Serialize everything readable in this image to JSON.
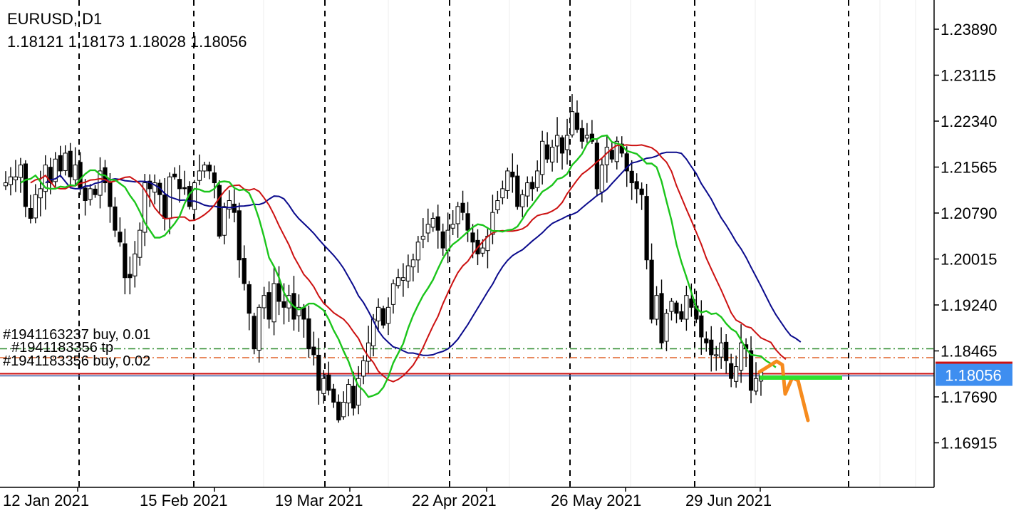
{
  "header": {
    "symbol": "EURUSD, D1",
    "ohlc": "1.18121 1.18173 1.18028 1.18056"
  },
  "chart_data": {
    "type": "candlestick",
    "symbol": "EURUSD",
    "timeframe": "D1",
    "ohlc_last": {
      "open": 1.18121,
      "high": 1.18173,
      "low": 1.18028,
      "close": 1.18056
    },
    "price_labels": [
      "1.23890",
      "1.23115",
      "1.22340",
      "1.21565",
      "1.20790",
      "1.20015",
      "1.19240",
      "1.18465",
      "1.17690",
      "1.16915"
    ],
    "price_ticks": [
      1.2389,
      1.23115,
      1.2234,
      1.21565,
      1.2079,
      1.20015,
      1.1924,
      1.18465,
      1.1769,
      1.16915
    ],
    "ylim": [
      1.1635,
      1.2445
    ],
    "current_price": "1.18056",
    "current_price_value": 1.18056,
    "date_labels": [
      "12 Jan 2021",
      "15 Feb 2021",
      "19 Mar 2021",
      "22 Apr 2021",
      "26 May 2021",
      "29 Jun 2021"
    ],
    "trade_lines": [
      {
        "label": "#1941163237 buy, 0.01",
        "price": 1.18465,
        "style": "dashdot",
        "color": "#2e8b2e"
      },
      {
        "label": "#1941183356 tp",
        "price": 1.18465,
        "style": "dashdot",
        "color": "#2e8b2e"
      },
      {
        "label": "#1941183356 buy, 0.02",
        "price": 1.1829,
        "style": "dashdot",
        "color": "#e0622a"
      }
    ],
    "closes": [
      1.213,
      1.214,
      1.214,
      1.216,
      1.209,
      1.207,
      1.211,
      1.212,
      1.216,
      1.213,
      1.217,
      1.215,
      1.218,
      1.214,
      1.216,
      1.212,
      1.21,
      1.212,
      1.211,
      1.215,
      1.213,
      1.209,
      1.205,
      1.203,
      1.197,
      1.197,
      1.201,
      1.205,
      1.213,
      1.212,
      1.213,
      1.211,
      1.207,
      1.214,
      1.214,
      1.212,
      1.212,
      1.209,
      1.213,
      1.215,
      1.216,
      1.215,
      1.213,
      1.204,
      1.209,
      1.21,
      1.208,
      1.2,
      1.196,
      1.191,
      1.185,
      1.192,
      1.194,
      1.19,
      1.196,
      1.193,
      1.192,
      1.194,
      1.19,
      1.192,
      1.19,
      1.185,
      1.184,
      1.178,
      1.18,
      1.178,
      1.176,
      1.173,
      1.176,
      1.179,
      1.175,
      1.18,
      1.183,
      1.186,
      1.19,
      1.192,
      1.189,
      1.192,
      1.196,
      1.197,
      1.197,
      1.199,
      1.2,
      1.203,
      1.204,
      1.206,
      1.207,
      1.205,
      1.202,
      1.205,
      1.206,
      1.209,
      1.208,
      1.205,
      1.203,
      1.201,
      1.202,
      1.204,
      1.208,
      1.21,
      1.212,
      1.215,
      1.214,
      1.209,
      1.211,
      1.213,
      1.212,
      1.215,
      1.22,
      1.217,
      1.219,
      1.221,
      1.218,
      1.221,
      1.225,
      1.222,
      1.22,
      1.221,
      1.22,
      1.212,
      1.216,
      1.219,
      1.217,
      1.22,
      1.218,
      1.215,
      1.213,
      1.212,
      1.211,
      1.2,
      1.19,
      1.194,
      1.186,
      1.191,
      1.193,
      1.191,
      1.19,
      1.194,
      1.192,
      1.19,
      1.187,
      1.186,
      1.184,
      1.184,
      1.186,
      1.183,
      1.18,
      1.182,
      1.186,
      1.185,
      1.178,
      1.18,
      1.181
    ],
    "series": [
      {
        "name": "MA green",
        "color": "#1bc51b"
      },
      {
        "name": "MA red",
        "color": "#cc1111"
      },
      {
        "name": "MA blue",
        "color": "#0a0a8c"
      }
    ],
    "annotations": [
      {
        "type": "freehand",
        "color": "#f68b1e"
      },
      {
        "type": "segment",
        "color": "#2ee02e"
      }
    ],
    "grid": "vertical dashed separators"
  }
}
